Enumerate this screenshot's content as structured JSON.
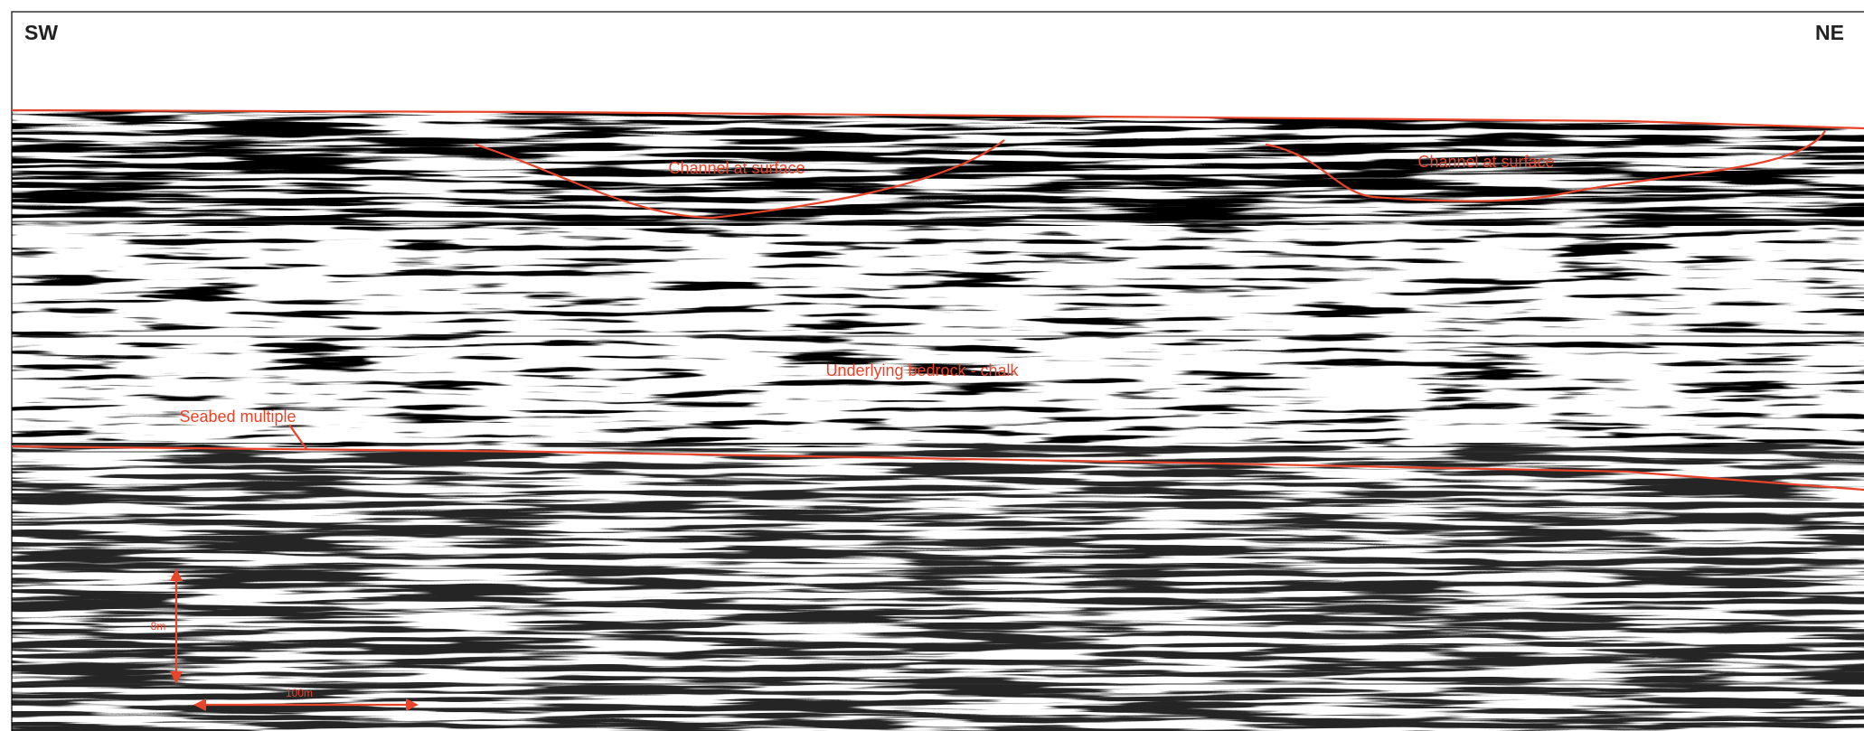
{
  "header": {
    "left": "SW",
    "right": "NE"
  },
  "annotations": {
    "channel_1": "Channel at surface",
    "channel_2": "Channel at surface",
    "bedrock": "Underlying bedrock - chalk",
    "multiple": "Seabed multiple"
  },
  "scale": {
    "vertical": "8m",
    "horizontal": "100m"
  }
}
